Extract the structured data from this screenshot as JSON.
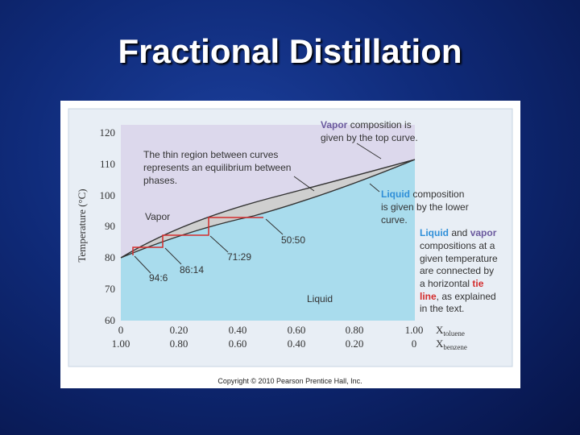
{
  "slide": {
    "title": "Fractional Distillation",
    "copyright": "Copyright © 2010 Pearson Prentice Hall, Inc."
  },
  "diagram": {
    "ylabel": "Temperature (°C)",
    "y_ticks": [
      "120",
      "110",
      "100",
      "90",
      "80",
      "70",
      "60"
    ],
    "x_ticks_toluene": [
      "0",
      "0.20",
      "0.40",
      "0.60",
      "0.80",
      "1.00"
    ],
    "x_ticks_benzene": [
      "1.00",
      "0.80",
      "0.60",
      "0.40",
      "0.20",
      "0"
    ],
    "x_label_toluene_main": "X",
    "x_label_toluene_sub": "toluene",
    "x_label_benzene_main": "X",
    "x_label_benzene_sub": "benzene",
    "region_labels": {
      "vapor": "Vapor",
      "liquid": "Liquid"
    },
    "point_labels": [
      "94:6",
      "86:14",
      "71:29",
      "50:50"
    ],
    "annotations": {
      "thin_region": [
        "The thin region between curves",
        "represents an equilibrium between",
        "phases."
      ],
      "vapor_comp_1_key": "Vapor",
      "vapor_comp_1_rest": " composition is",
      "vapor_comp_2": "given by the top curve.",
      "liquid_comp_1_key": "Liquid",
      "liquid_comp_1_rest": " composition",
      "liquid_comp_2": "is given by the lower",
      "liquid_comp_3": "curve.",
      "tie_1_key1": "Liquid",
      "tie_1_mid": " and ",
      "tie_1_key2": "vapor",
      "tie_2": "compositions at a",
      "tie_3": "given temperature",
      "tie_4": "are connected by",
      "tie_5_pre": "a horizontal ",
      "tie_5_key": "tie",
      "tie_6_key": "line",
      "tie_6_rest": ", as explained",
      "tie_7": "in the text."
    },
    "colors": {
      "vapor_region": "#dcd8ec",
      "liquid_region": "#a9dced",
      "equilibrium_region": "#cfcfcf",
      "tie_line": "#d42d2d",
      "liquid_keyword": "#2f8fd8",
      "vapor_keyword": "#6b5a9e",
      "tie_keyword": "#d42d2d"
    }
  }
}
